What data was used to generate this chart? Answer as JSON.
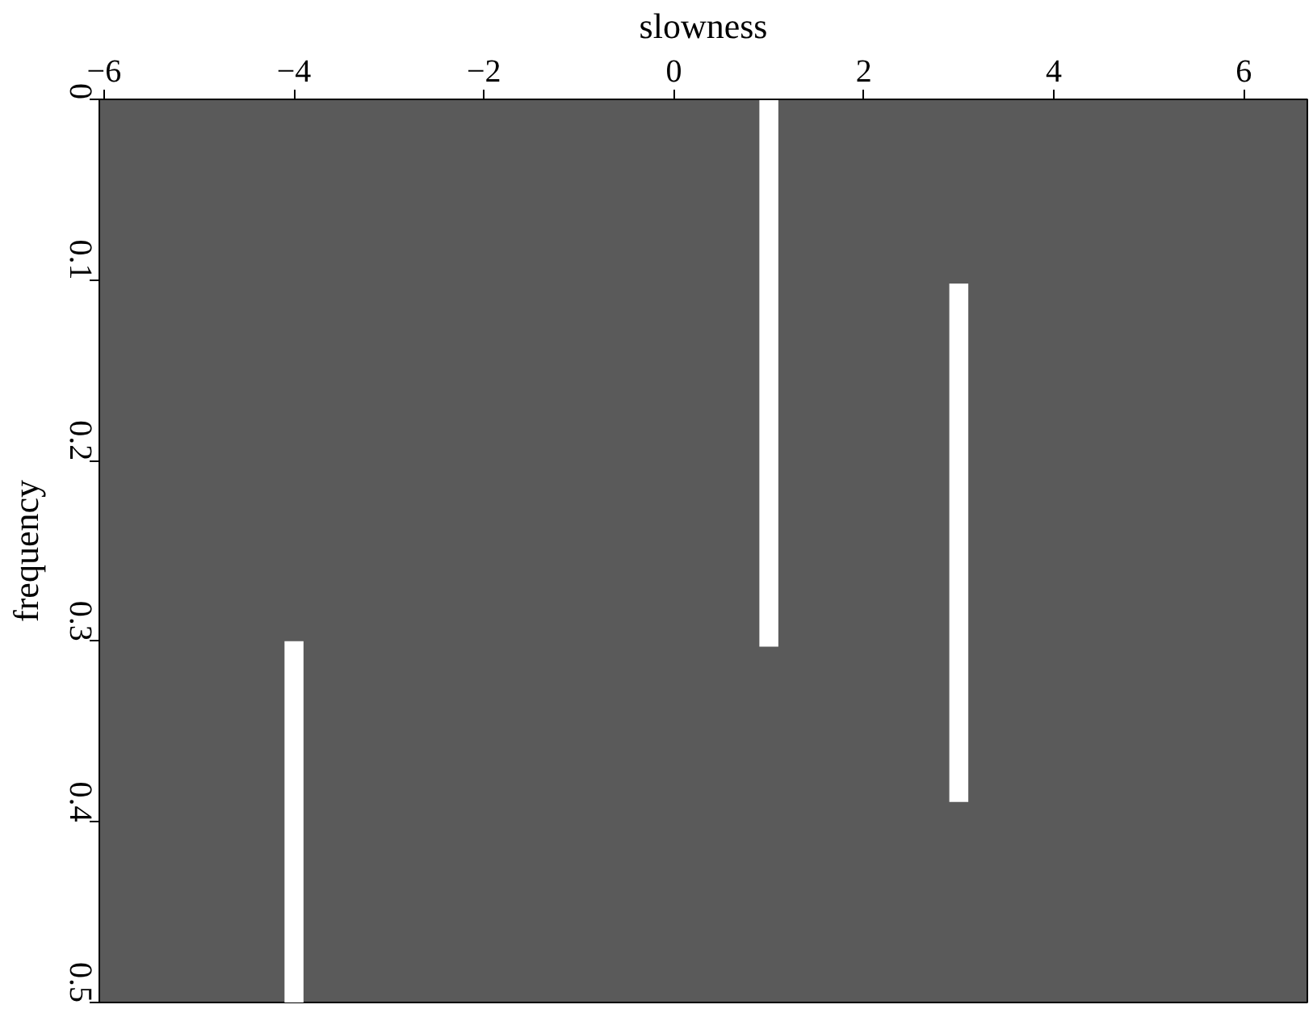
{
  "chart_data": {
    "type": "bar",
    "xlabel": "slowness",
    "ylabel": "frequency",
    "x": [
      -4,
      1,
      3
    ],
    "base": [
      0.3,
      0,
      0.102
    ],
    "values": [
      0.2,
      0.303,
      0.287
    ],
    "color": "#ffffff",
    "xlim": [
      -6.05,
      6.67
    ],
    "xticks": [
      -6,
      -4,
      -2,
      0,
      2,
      4,
      6
    ],
    "ylim": [
      0.5,
      0
    ],
    "yticks": [
      0,
      0.1,
      0.2,
      0.3,
      0.4,
      0.5
    ],
    "grid": false
  }
}
